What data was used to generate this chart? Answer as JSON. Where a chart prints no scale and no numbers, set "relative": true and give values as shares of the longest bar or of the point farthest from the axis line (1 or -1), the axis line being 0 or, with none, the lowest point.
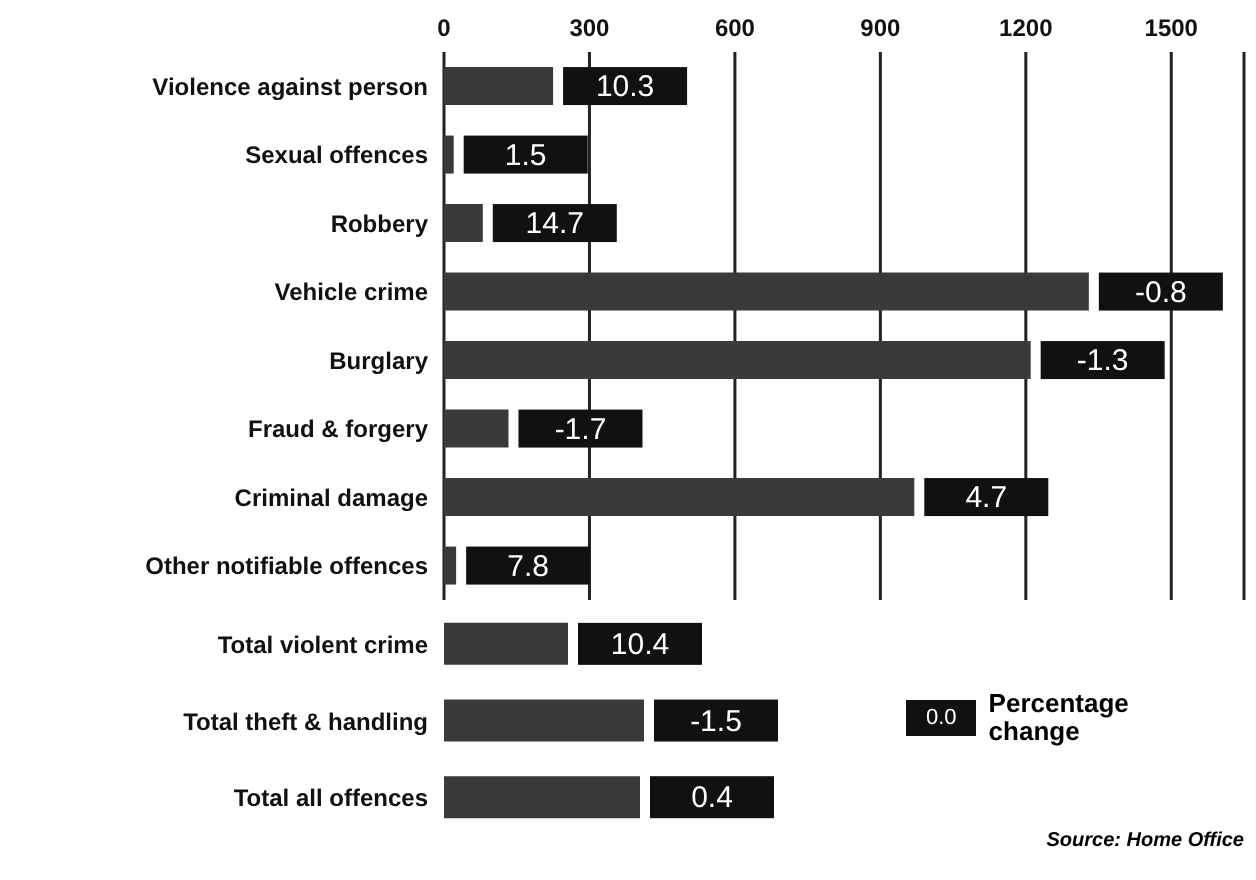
{
  "chart_data": [
    {
      "type": "bar",
      "orientation": "horizontal",
      "categories": [
        "Violence against person",
        "Sexual offences",
        "Robbery",
        "Vehicle crime",
        "Burglary",
        "Fraud & forgery",
        "Criminal damage",
        "Other notifiable offences"
      ],
      "values": [
        225,
        20,
        80,
        1330,
        1210,
        133,
        970,
        25
      ],
      "color": "#3a3a3a",
      "xlim": [
        0,
        1650
      ],
      "xticks": [
        0,
        300,
        600,
        900,
        1200,
        1500
      ],
      "grid": "x",
      "annotations": [
        "10.3",
        "1.5",
        "14.7",
        "-0.8",
        "-1.3",
        "-1.7",
        "4.7",
        "7.8"
      ]
    },
    {
      "type": "bar",
      "orientation": "horizontal",
      "relative": true,
      "categories": [
        "Total violent crime",
        "Total theft & handling",
        "Total all offences"
      ],
      "values": [
        0.62,
        1,
        0.98
      ],
      "color": "#3a3a3a",
      "annotations": [
        "10.4",
        "-1.5",
        "0.4",
        "0.0",
        "Percentage change",
        "Source: Home Office"
      ]
    }
  ]
}
